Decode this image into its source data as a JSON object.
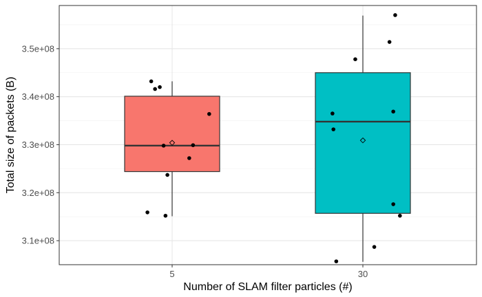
{
  "chart_data": {
    "type": "boxplot",
    "title": "",
    "xlabel": "Number of SLAM filter particles (#)",
    "ylabel": "Total size of packets (B)",
    "ylim": [
      305000000,
      359000000
    ],
    "y_ticks": [
      310000000,
      320000000,
      330000000,
      340000000,
      350000000
    ],
    "y_tick_labels": [
      "3.1e+08",
      "3.2e+08",
      "3.3e+08",
      "3.4e+08",
      "3.5e+08"
    ],
    "categories": [
      "5",
      "30"
    ],
    "grid": true,
    "colors": {
      "5": "#F8766D",
      "30": "#00BFC4"
    },
    "boxes": [
      {
        "category": "5",
        "whisker_low": 315100000,
        "q1": 324400000,
        "median": 329800000,
        "q3": 340100000,
        "whisker_high": 343200000,
        "mean": 330400000,
        "points": [
          {
            "jitter": -0.22,
            "y": 343200000
          },
          {
            "jitter": -0.18,
            "y": 341600000
          },
          {
            "jitter": -0.13,
            "y": 342000000
          },
          {
            "jitter": 0.39,
            "y": 336400000
          },
          {
            "jitter": -0.09,
            "y": 329800000
          },
          {
            "jitter": 0.22,
            "y": 329900000
          },
          {
            "jitter": 0.18,
            "y": 327200000
          },
          {
            "jitter": -0.05,
            "y": 323700000
          },
          {
            "jitter": -0.26,
            "y": 315900000
          },
          {
            "jitter": -0.07,
            "y": 315200000
          }
        ]
      },
      {
        "category": "30",
        "whisker_low": 305600000,
        "q1": 315700000,
        "median": 334800000,
        "q3": 345000000,
        "whisker_high": 356900000,
        "mean": 330900000,
        "points": [
          {
            "jitter": 0.34,
            "y": 357000000
          },
          {
            "jitter": 0.28,
            "y": 351400000
          },
          {
            "jitter": -0.08,
            "y": 347800000
          },
          {
            "jitter": -0.32,
            "y": 336500000
          },
          {
            "jitter": 0.32,
            "y": 336900000
          },
          {
            "jitter": -0.31,
            "y": 333200000
          },
          {
            "jitter": 0.32,
            "y": 317600000
          },
          {
            "jitter": 0.39,
            "y": 315200000
          },
          {
            "jitter": 0.12,
            "y": 308700000
          },
          {
            "jitter": -0.28,
            "y": 305700000
          }
        ]
      }
    ]
  }
}
